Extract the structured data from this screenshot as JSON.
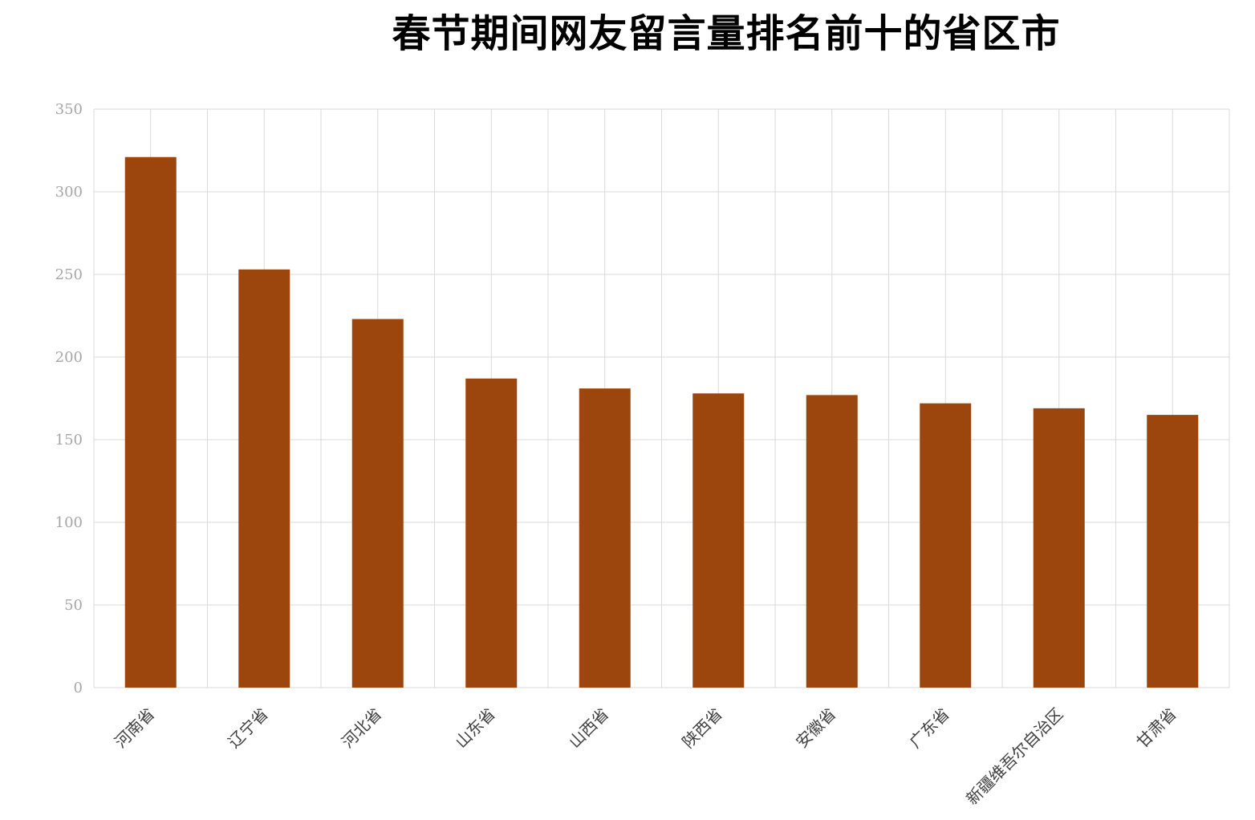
{
  "chart_data": {
    "type": "bar",
    "title": "春节期间网友留言量排名前十的省区市",
    "categories": [
      "河南省",
      "辽宁省",
      "河北省",
      "山东省",
      "山西省",
      "陕西省",
      "安徽省",
      "广东省",
      "新疆维吾尔自治区",
      "甘肃省"
    ],
    "values": [
      321,
      253,
      223,
      187,
      181,
      178,
      177,
      172,
      169,
      165
    ],
    "xlabel": "",
    "ylabel": "",
    "ylim": [
      0,
      350
    ],
    "yticks": [
      0,
      50,
      100,
      150,
      200,
      250,
      300,
      350
    ],
    "grid": true,
    "legend": "none",
    "colors": {
      "bar": "#9c460d",
      "grid": "#d9d9d9",
      "tick_text": "#a6a6a6",
      "category_text": "#404040"
    }
  }
}
